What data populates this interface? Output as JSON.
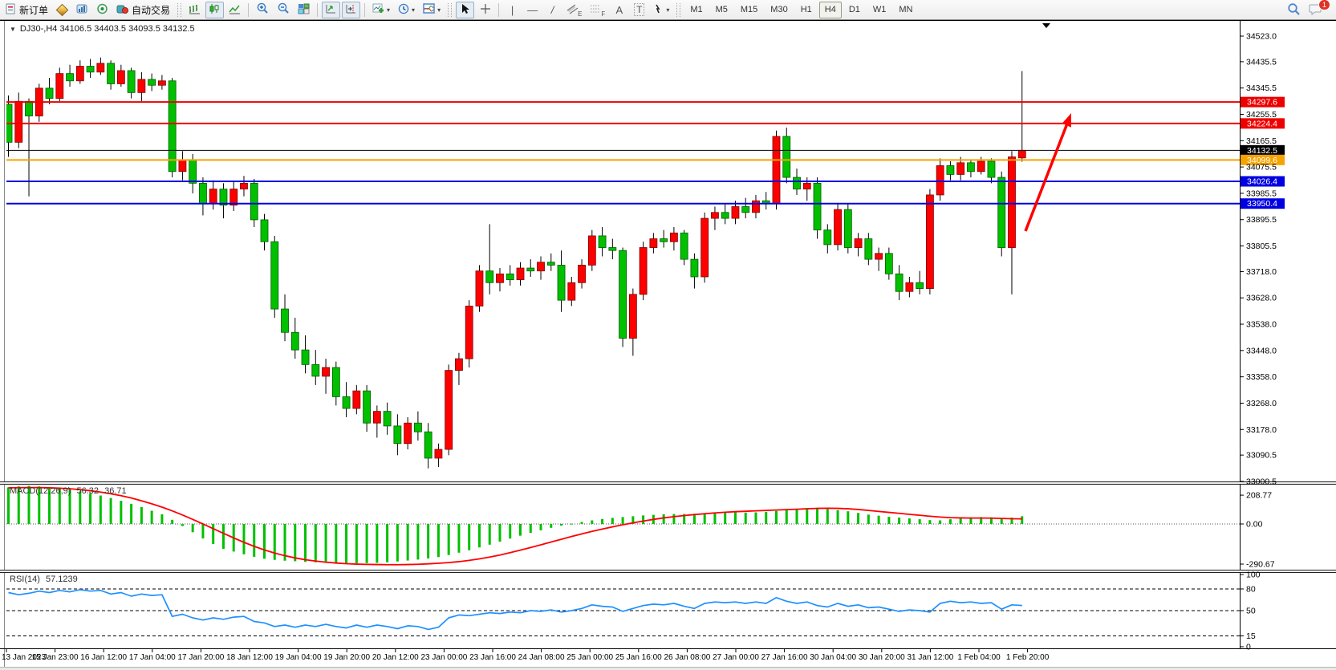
{
  "toolbar": {
    "new_order_label": "新订单",
    "auto_trading_label": "自动交易",
    "timeframes": [
      "M1",
      "M5",
      "M15",
      "M30",
      "H1",
      "H4",
      "D1",
      "W1",
      "MN"
    ],
    "active_timeframe": "H4",
    "notification_count": "1",
    "tools": {
      "vline": "|",
      "hline": "—",
      "trend": "/",
      "text": "A",
      "label": "T",
      "channel_letter": "E",
      "fibo_letter": "F"
    }
  },
  "icons": {
    "caret": "▾",
    "dropdown_arrow": "▼",
    "chart_shift_marker": "▼",
    "search_icon": "search",
    "notifications_icon": "chat-bubble",
    "list": [
      "document-icon",
      "gold-diamond-icon",
      "data-window-icon",
      "broadcast-icon",
      "auto-trading-icon",
      "bars-chart-icon",
      "candlestick-chart-icon",
      "line-chart-icon",
      "zoom-in-icon",
      "zoom-out-icon",
      "tile-windows-icon",
      "auto-scroll-icon",
      "chart-shift-icon",
      "indicators-add-icon",
      "clock-icon",
      "template-icon",
      "cursor-icon",
      "crosshair-icon",
      "vline-icon",
      "hline-icon",
      "trendline-icon",
      "channel-icon",
      "fibonacci-icon",
      "text-icon",
      "label-icon",
      "arrows-icon",
      "search-icon",
      "chat-icon"
    ]
  },
  "chart": {
    "title": "DJ30-,H4  34106.5 34403.5 34093.5 34132.5"
  },
  "chart_data": {
    "type": "candlestick",
    "symbol": "DJ30-",
    "period": "H4",
    "ohlc": {
      "open": 34106.5,
      "high": 34403.5,
      "low": 34093.5,
      "close": 34132.5
    },
    "bull_color": "#ff0000",
    "bear_color": "#00c000",
    "candles": [
      [
        34290,
        34320,
        34110,
        34160
      ],
      [
        34160,
        34330,
        34140,
        34300
      ],
      [
        34300,
        34310,
        33975,
        34250
      ],
      [
        34250,
        34360,
        34230,
        34345
      ],
      [
        34345,
        34380,
        34290,
        34310
      ],
      [
        34310,
        34415,
        34300,
        34395
      ],
      [
        34395,
        34425,
        34350,
        34370
      ],
      [
        34370,
        34440,
        34360,
        34420
      ],
      [
        34420,
        34445,
        34380,
        34400
      ],
      [
        34400,
        34450,
        34390,
        34430
      ],
      [
        34430,
        34440,
        34340,
        34360
      ],
      [
        34360,
        34425,
        34350,
        34405
      ],
      [
        34405,
        34415,
        34310,
        34330
      ],
      [
        34330,
        34400,
        34300,
        34375
      ],
      [
        34375,
        34395,
        34335,
        34355
      ],
      [
        34355,
        34390,
        34340,
        34370
      ],
      [
        34370,
        34380,
        34040,
        34060
      ],
      [
        34060,
        34130,
        34030,
        34100
      ],
      [
        34100,
        34120,
        33985,
        34020
      ],
      [
        34020,
        34040,
        33910,
        33950
      ],
      [
        33950,
        34030,
        33930,
        34000
      ],
      [
        34000,
        34020,
        33900,
        33945
      ],
      [
        33945,
        34025,
        33925,
        34000
      ],
      [
        34000,
        34045,
        33975,
        34020
      ],
      [
        34020,
        34035,
        33870,
        33895
      ],
      [
        33895,
        33915,
        33790,
        33820
      ],
      [
        33820,
        33840,
        33560,
        33590
      ],
      [
        33590,
        33640,
        33480,
        33510
      ],
      [
        33510,
        33560,
        33420,
        33450
      ],
      [
        33450,
        33500,
        33370,
        33400
      ],
      [
        33400,
        33450,
        33330,
        33360
      ],
      [
        33360,
        33420,
        33300,
        33390
      ],
      [
        33390,
        33410,
        33260,
        33290
      ],
      [
        33290,
        33340,
        33220,
        33250
      ],
      [
        33250,
        33330,
        33230,
        33310
      ],
      [
        33310,
        33330,
        33170,
        33200
      ],
      [
        33200,
        33260,
        33150,
        33240
      ],
      [
        33240,
        33270,
        33160,
        33190
      ],
      [
        33190,
        33230,
        33090,
        33130
      ],
      [
        33130,
        33220,
        33110,
        33200
      ],
      [
        33200,
        33240,
        33140,
        33170
      ],
      [
        33170,
        33200,
        33045,
        33080
      ],
      [
        33080,
        33130,
        33050,
        33110
      ],
      [
        33110,
        33400,
        33090,
        33380
      ],
      [
        33380,
        33440,
        33330,
        33420
      ],
      [
        33420,
        33620,
        33390,
        33600
      ],
      [
        33600,
        33740,
        33580,
        33720
      ],
      [
        33720,
        33880,
        33640,
        33680
      ],
      [
        33680,
        33730,
        33650,
        33710
      ],
      [
        33710,
        33740,
        33670,
        33690
      ],
      [
        33690,
        33750,
        33670,
        33730
      ],
      [
        33730,
        33760,
        33700,
        33720
      ],
      [
        33720,
        33770,
        33690,
        33750
      ],
      [
        33750,
        33780,
        33720,
        33740
      ],
      [
        33740,
        33790,
        33580,
        33620
      ],
      [
        33620,
        33700,
        33600,
        33680
      ],
      [
        33680,
        33760,
        33660,
        33740
      ],
      [
        33740,
        33860,
        33720,
        33840
      ],
      [
        33840,
        33870,
        33770,
        33800
      ],
      [
        33800,
        33830,
        33760,
        33790
      ],
      [
        33790,
        33800,
        33460,
        33490
      ],
      [
        33490,
        33660,
        33430,
        33640
      ],
      [
        33640,
        33820,
        33620,
        33800
      ],
      [
        33800,
        33850,
        33780,
        33830
      ],
      [
        33830,
        33860,
        33800,
        33820
      ],
      [
        33820,
        33870,
        33790,
        33850
      ],
      [
        33850,
        33860,
        33740,
        33760
      ],
      [
        33760,
        33780,
        33660,
        33700
      ],
      [
        33700,
        33920,
        33680,
        33900
      ],
      [
        33900,
        33940,
        33860,
        33920
      ],
      [
        33920,
        33950,
        33880,
        33900
      ],
      [
        33900,
        33960,
        33880,
        33940
      ],
      [
        33940,
        33970,
        33900,
        33920
      ],
      [
        33920,
        33980,
        33900,
        33960
      ],
      [
        33960,
        33990,
        33930,
        33950
      ],
      [
        33950,
        34200,
        33930,
        34180
      ],
      [
        34180,
        34210,
        34020,
        34040
      ],
      [
        34040,
        34070,
        33980,
        34000
      ],
      [
        34000,
        34040,
        33960,
        34020
      ],
      [
        34020,
        34040,
        33830,
        33860
      ],
      [
        33860,
        33880,
        33780,
        33810
      ],
      [
        33810,
        33950,
        33790,
        33930
      ],
      [
        33930,
        33950,
        33780,
        33800
      ],
      [
        33800,
        33850,
        33770,
        33830
      ],
      [
        33830,
        33850,
        33740,
        33760
      ],
      [
        33760,
        33800,
        33720,
        33780
      ],
      [
        33780,
        33800,
        33690,
        33710
      ],
      [
        33710,
        33740,
        33620,
        33650
      ],
      [
        33650,
        33700,
        33630,
        33680
      ],
      [
        33680,
        33720,
        33640,
        33660
      ],
      [
        33660,
        34000,
        33640,
        33980
      ],
      [
        33980,
        34105,
        33960,
        34080
      ],
      [
        34080,
        34095,
        34030,
        34050
      ],
      [
        34050,
        34110,
        34030,
        34090
      ],
      [
        34090,
        34100,
        34040,
        34060
      ],
      [
        34060,
        34110,
        34050,
        34095
      ],
      [
        34095,
        34105,
        34020,
        34040
      ],
      [
        34040,
        34060,
        33770,
        33800
      ],
      [
        33800,
        34130,
        33640,
        34110
      ],
      [
        34106.5,
        34403.5,
        34093.5,
        34132.5
      ]
    ],
    "price_axis_ticks": [
      "34523.0",
      "34435.5",
      "34345.5",
      "34255.5",
      "34165.5",
      "34075.5",
      "33985.5",
      "33895.5",
      "33805.5",
      "33718.0",
      "33628.0",
      "33538.0",
      "33448.0",
      "33358.0",
      "33268.0",
      "33178.0",
      "33090.5",
      "33000.5"
    ],
    "hlines": [
      {
        "price": 34297.6,
        "label": "34297.6",
        "color": "#ee0000",
        "width": 2
      },
      {
        "price": 34224.4,
        "label": "34224.4",
        "color": "#ee0000",
        "width": 2
      },
      {
        "price": 34132.5,
        "label": "34132.5",
        "color": "#000000",
        "width": 1,
        "role": "current-price"
      },
      {
        "price": 34099.6,
        "label": "34099.6",
        "color": "#f5a300",
        "width": 2
      },
      {
        "price": 34026.4,
        "label": "34026.4",
        "color": "#0000e0",
        "width": 2
      },
      {
        "price": 33950.4,
        "label": "33950.4",
        "color": "#0000e0",
        "width": 2
      }
    ],
    "time_labels": [
      "13 Jan 2023",
      "15 Jan 23:00",
      "16 Jan 12:00",
      "17 Jan 04:00",
      "17 Jan 20:00",
      "18 Jan 12:00",
      "19 Jan 04:00",
      "19 Jan 20:00",
      "20 Jan 12:00",
      "23 Jan 00:00",
      "23 Jan 16:00",
      "24 Jan 08:00",
      "25 Jan 00:00",
      "25 Jan 16:00",
      "26 Jan 08:00",
      "27 Jan 00:00",
      "27 Jan 16:00",
      "30 Jan 04:00",
      "30 Jan 20:00",
      "31 Jan 12:00",
      "1 Feb 04:00",
      "1 Feb 20:00"
    ],
    "macd": {
      "label": "MACD(12,26,9)",
      "value": "56.32",
      "signal_value": "36.71",
      "axis_ticks": [
        "208.77",
        "0.00",
        "-290.67"
      ],
      "axis_values": [
        208.77,
        0,
        -290.67
      ],
      "hist_color": "#00c000",
      "signal_color": "#ff0000",
      "histogram": [
        265,
        272,
        276,
        272,
        266,
        258,
        248,
        236,
        222,
        206,
        188,
        168,
        146,
        122,
        96,
        70,
        30,
        -15,
        -60,
        -105,
        -145,
        -180,
        -200,
        -220,
        -238,
        -252,
        -260,
        -266,
        -270,
        -275,
        -278,
        -280,
        -282,
        -284,
        -285,
        -284,
        -282,
        -278,
        -272,
        -265,
        -258,
        -250,
        -240,
        -225,
        -208,
        -190,
        -170,
        -150,
        -128,
        -106,
        -85,
        -65,
        -46,
        -28,
        -12,
        2,
        14,
        26,
        36,
        44,
        50,
        56,
        62,
        66,
        70,
        72,
        72,
        74,
        78,
        82,
        84,
        84,
        82,
        84,
        88,
        94,
        100,
        104,
        108,
        112,
        108,
        100,
        92,
        80,
        68,
        60,
        52,
        46,
        40,
        34,
        28,
        26,
        34,
        44,
        48,
        50,
        48,
        38,
        46,
        56.32
      ],
      "signal": [
        262,
        263,
        264,
        264,
        262,
        259,
        255,
        249,
        241,
        231,
        219,
        205,
        188,
        168,
        146,
        122,
        95,
        65,
        33,
        0,
        -34,
        -68,
        -101,
        -133,
        -162,
        -188,
        -211,
        -230,
        -246,
        -259,
        -269,
        -277,
        -283,
        -288,
        -291,
        -293,
        -294,
        -295,
        -295,
        -294,
        -292,
        -289,
        -285,
        -280,
        -273,
        -264,
        -253,
        -240,
        -225,
        -208,
        -190,
        -171,
        -151,
        -131,
        -111,
        -91,
        -72,
        -54,
        -37,
        -21,
        -6,
        8,
        21,
        33,
        44,
        53,
        61,
        68,
        74,
        80,
        85,
        89,
        92,
        95,
        98,
        101,
        104,
        107,
        110,
        113,
        114,
        113,
        110,
        105,
        98,
        91,
        84,
        77,
        70,
        63,
        56,
        50,
        46,
        44,
        43,
        43,
        42,
        40,
        38,
        36.71
      ]
    },
    "rsi": {
      "label": "RSI(14)",
      "value": "57.1239",
      "color": "#1e90ff",
      "axis_ticks": [
        "100",
        "80",
        "50",
        "15",
        "0"
      ],
      "axis_values": [
        100,
        80,
        50,
        15,
        0
      ],
      "dashed_levels": [
        80,
        50,
        15
      ],
      "values": [
        75,
        72,
        74,
        77,
        75,
        78,
        76,
        79,
        77,
        78,
        73,
        75,
        70,
        73,
        71,
        72,
        42,
        45,
        40,
        37,
        40,
        38,
        41,
        42,
        35,
        33,
        28,
        30,
        27,
        30,
        28,
        31,
        28,
        26,
        30,
        27,
        30,
        28,
        25,
        29,
        28,
        24,
        27,
        40,
        44,
        43,
        45,
        47,
        46,
        48,
        47,
        50,
        49,
        51,
        48,
        50,
        53,
        58,
        56,
        55,
        49,
        53,
        57,
        59,
        58,
        60,
        56,
        53,
        60,
        62,
        61,
        62,
        60,
        62,
        60,
        68,
        63,
        60,
        62,
        57,
        55,
        60,
        56,
        58,
        54,
        55,
        52,
        49,
        51,
        50,
        48,
        60,
        63,
        61,
        62,
        60,
        61,
        52,
        58,
        57.12
      ]
    },
    "annotations": [
      {
        "type": "arrow",
        "color": "#ff0000",
        "direction": "up-right"
      }
    ]
  }
}
